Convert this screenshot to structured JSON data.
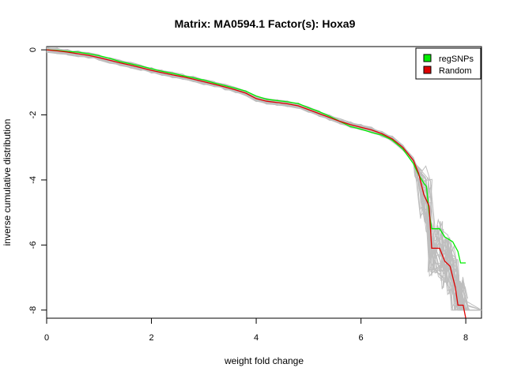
{
  "chart_data": {
    "type": "line",
    "title": "Matrix: MA0594.1 Factor(s): Hoxa9",
    "xlabel": "weight fold change",
    "ylabel": "inverse cumulative distribution",
    "xlim": [
      0,
      8.3
    ],
    "ylim": [
      -8.25,
      0.1
    ],
    "x_ticks": [
      "0",
      "2",
      "4",
      "6",
      "8"
    ],
    "y_ticks": [
      "0",
      "-2",
      "-4",
      "-6",
      "-8"
    ],
    "grid": false,
    "legend_position": "top-right",
    "colors": {
      "regSNPs": "#00ee00",
      "Random": "#dd0000",
      "background": "#bebebe"
    },
    "legend": [
      {
        "label": "regSNPs",
        "color": "#00ee00"
      },
      {
        "label": "Random",
        "color": "#dd0000"
      }
    ],
    "series": [
      {
        "name": "regSNPs",
        "points": [
          [
            0.0,
            0.0
          ],
          [
            0.2,
            -0.02
          ],
          [
            0.4,
            -0.05
          ],
          [
            0.6,
            -0.07
          ],
          [
            0.8,
            -0.12
          ],
          [
            1.0,
            -0.18
          ],
          [
            1.2,
            -0.26
          ],
          [
            1.4,
            -0.36
          ],
          [
            1.6,
            -0.43
          ],
          [
            1.8,
            -0.5
          ],
          [
            2.0,
            -0.58
          ],
          [
            2.2,
            -0.66
          ],
          [
            2.4,
            -0.72
          ],
          [
            2.6,
            -0.79
          ],
          [
            2.8,
            -0.86
          ],
          [
            3.0,
            -0.93
          ],
          [
            3.2,
            -1.02
          ],
          [
            3.4,
            -1.1
          ],
          [
            3.6,
            -1.18
          ],
          [
            3.8,
            -1.27
          ],
          [
            4.0,
            -1.42
          ],
          [
            4.2,
            -1.52
          ],
          [
            4.4,
            -1.56
          ],
          [
            4.6,
            -1.6
          ],
          [
            4.8,
            -1.65
          ],
          [
            5.0,
            -1.78
          ],
          [
            5.2,
            -1.9
          ],
          [
            5.4,
            -2.04
          ],
          [
            5.6,
            -2.2
          ],
          [
            5.8,
            -2.36
          ],
          [
            6.0,
            -2.44
          ],
          [
            6.2,
            -2.54
          ],
          [
            6.4,
            -2.62
          ],
          [
            6.6,
            -2.78
          ],
          [
            6.8,
            -3.05
          ],
          [
            7.0,
            -3.5
          ],
          [
            7.1,
            -3.84
          ],
          [
            7.2,
            -4.1
          ],
          [
            7.25,
            -4.2
          ],
          [
            7.3,
            -5.0
          ],
          [
            7.35,
            -5.5
          ],
          [
            7.5,
            -5.5
          ],
          [
            7.6,
            -5.75
          ],
          [
            7.75,
            -5.9
          ],
          [
            7.85,
            -6.2
          ],
          [
            7.9,
            -6.55
          ],
          [
            8.0,
            -6.55
          ]
        ]
      },
      {
        "name": "Random",
        "points": [
          [
            0.0,
            0.0
          ],
          [
            0.2,
            -0.03
          ],
          [
            0.4,
            -0.07
          ],
          [
            0.6,
            -0.12
          ],
          [
            0.8,
            -0.17
          ],
          [
            1.0,
            -0.24
          ],
          [
            1.2,
            -0.32
          ],
          [
            1.4,
            -0.4
          ],
          [
            1.6,
            -0.47
          ],
          [
            1.8,
            -0.55
          ],
          [
            2.0,
            -0.63
          ],
          [
            2.2,
            -0.7
          ],
          [
            2.4,
            -0.77
          ],
          [
            2.6,
            -0.83
          ],
          [
            2.8,
            -0.9
          ],
          [
            3.0,
            -0.98
          ],
          [
            3.2,
            -1.06
          ],
          [
            3.4,
            -1.14
          ],
          [
            3.6,
            -1.23
          ],
          [
            3.8,
            -1.33
          ],
          [
            4.0,
            -1.5
          ],
          [
            4.2,
            -1.58
          ],
          [
            4.4,
            -1.62
          ],
          [
            4.6,
            -1.66
          ],
          [
            4.8,
            -1.72
          ],
          [
            5.0,
            -1.84
          ],
          [
            5.2,
            -1.96
          ],
          [
            5.4,
            -2.08
          ],
          [
            5.6,
            -2.2
          ],
          [
            5.8,
            -2.3
          ],
          [
            6.0,
            -2.38
          ],
          [
            6.2,
            -2.46
          ],
          [
            6.4,
            -2.58
          ],
          [
            6.6,
            -2.74
          ],
          [
            6.8,
            -3.0
          ],
          [
            7.0,
            -3.4
          ],
          [
            7.1,
            -3.8
          ],
          [
            7.2,
            -4.45
          ],
          [
            7.3,
            -4.8
          ],
          [
            7.35,
            -6.1
          ],
          [
            7.5,
            -6.1
          ],
          [
            7.6,
            -6.5
          ],
          [
            7.7,
            -6.65
          ],
          [
            7.8,
            -7.3
          ],
          [
            7.85,
            -7.85
          ],
          [
            7.95,
            -7.85
          ],
          [
            8.0,
            -8.25
          ]
        ]
      }
    ]
  }
}
